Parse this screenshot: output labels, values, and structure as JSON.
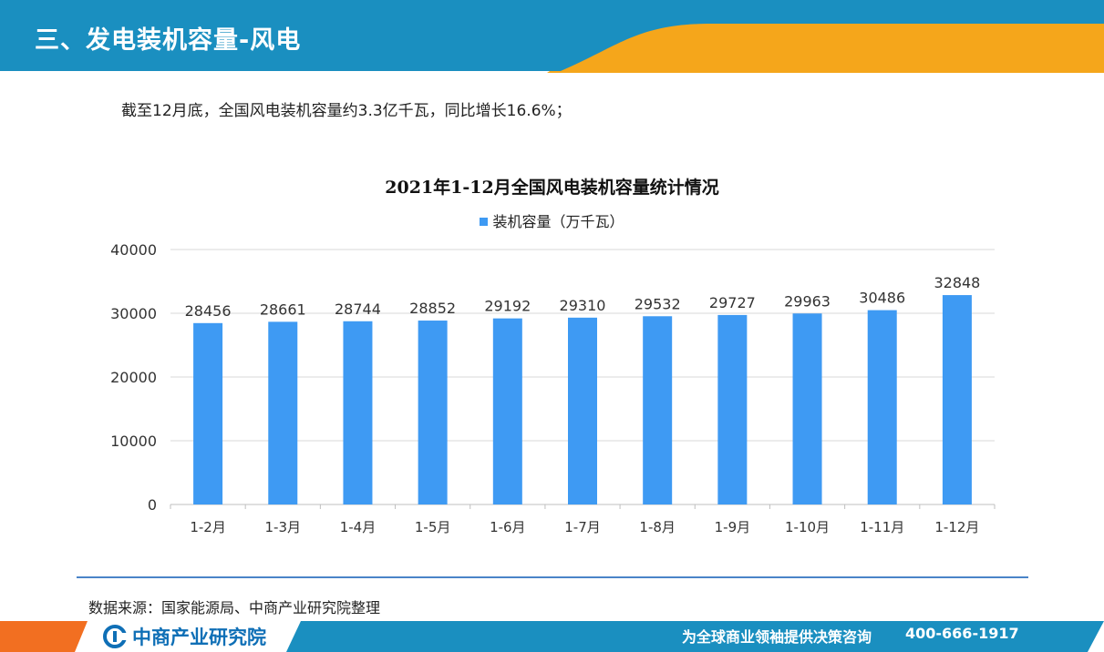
{
  "header": {
    "title": "三、发电装机容量-风电",
    "bg_color": "#1a8fc0",
    "accent_color": "#f5a61b"
  },
  "summary": "截至12月底，全国风电装机容量约3.3亿千瓦，同比增长16.6%；",
  "source": "数据来源：国家能源局、中商产业研究院整理",
  "footer": {
    "logo_text": "中商产业研究院",
    "logo_icon": "company-logo-icon",
    "slogan": "为全球商业领袖提供决策咨询",
    "phone": "400-666-1917",
    "bar_color": "#1a8fc0",
    "accent_color": "#f26f21"
  },
  "chart_data": {
    "type": "bar",
    "title": "2021年1-12月全国风电装机容量统计情况",
    "categories": [
      "1-2月",
      "1-3月",
      "1-4月",
      "1-5月",
      "1-6月",
      "1-7月",
      "1-8月",
      "1-9月",
      "1-10月",
      "1-11月",
      "1-12月"
    ],
    "series": [
      {
        "name": "装机容量（万千瓦）",
        "color": "#3e9af3",
        "values": [
          28456,
          28661,
          28744,
          28852,
          29192,
          29310,
          29532,
          29727,
          29963,
          30486,
          32848
        ]
      }
    ],
    "xlabel": "",
    "ylabel": "",
    "ylim": [
      0,
      40000
    ],
    "yticks": [
      0,
      10000,
      20000,
      30000,
      40000
    ],
    "grid": true,
    "legend": "top-center",
    "data_labels": true
  }
}
